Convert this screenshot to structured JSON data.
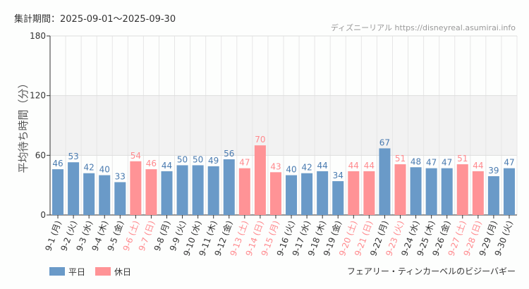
{
  "header": {
    "period": "集計期間：2025-09-01～2025-09-30",
    "source": "ディズニーリアル https://disneyreal.asumirai.info"
  },
  "footer": {
    "attraction": "フェアリー・ティンカーベルのビジーバギー"
  },
  "chart_data": {
    "type": "bar",
    "ylabel": "平均待ち時間（分）",
    "ylim": [
      0,
      180
    ],
    "yticks": [
      "0",
      "60",
      "120",
      "180"
    ],
    "shaded_band": [
      60,
      120
    ],
    "grid": true,
    "legend": [
      {
        "name": "平日",
        "color": "#6a9ac8"
      },
      {
        "name": "休日",
        "color": "#ff9396"
      }
    ],
    "legend_position": "bottom-left",
    "categories": [
      "9-1 (月)",
      "9-2 (火)",
      "9-3 (水)",
      "9-4 (木)",
      "9-5 (金)",
      "9-6 (土)",
      "9-7 (日)",
      "9-8 (月)",
      "9-9 (火)",
      "9-10 (水)",
      "9-11 (木)",
      "9-12 (金)",
      "9-13 (土)",
      "9-14 (日)",
      "9-15 (月)",
      "9-16 (火)",
      "9-17 (水)",
      "9-18 (木)",
      "9-19 (金)",
      "9-20 (土)",
      "9-21 (日)",
      "9-22 (月)",
      "9-23 (火)",
      "9-24 (水)",
      "9-25 (木)",
      "9-26 (金)",
      "9-27 (土)",
      "9-28 (日)",
      "9-29 (月)",
      "9-30 (火)"
    ],
    "values": [
      46,
      53,
      42,
      40,
      33,
      54,
      46,
      44,
      50,
      50,
      49,
      56,
      47,
      70,
      43,
      40,
      42,
      44,
      34,
      44,
      44,
      67,
      51,
      48,
      47,
      47,
      51,
      44,
      39,
      47
    ],
    "holiday": [
      false,
      false,
      false,
      false,
      false,
      true,
      true,
      false,
      false,
      false,
      false,
      false,
      true,
      true,
      true,
      false,
      false,
      false,
      false,
      true,
      true,
      false,
      true,
      false,
      false,
      false,
      true,
      true,
      false,
      false
    ]
  }
}
